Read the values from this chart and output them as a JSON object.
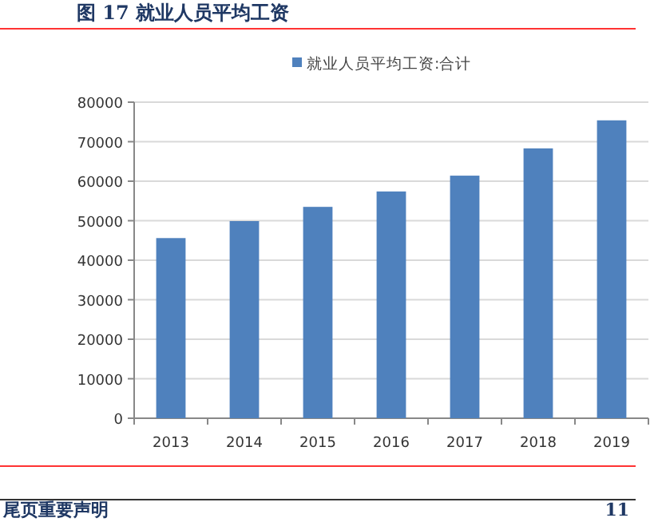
{
  "chart_data": {
    "type": "bar",
    "title": "图 17 就业人员平均工资",
    "categories": [
      "2013",
      "2014",
      "2015",
      "2016",
      "2017",
      "2018",
      "2019"
    ],
    "series": [
      {
        "name": "就业人员平均工资:合计",
        "color": "#4f81bd",
        "values": [
          45600,
          49900,
          53500,
          57400,
          61400,
          68300,
          75400
        ]
      }
    ],
    "ylim": [
      0,
      80000
    ],
    "yticks": [
      0,
      10000,
      20000,
      30000,
      40000,
      50000,
      60000,
      70000,
      80000
    ],
    "grid": "y",
    "legend": "top",
    "annotations": [
      "尾页重要声明",
      "11"
    ]
  }
}
